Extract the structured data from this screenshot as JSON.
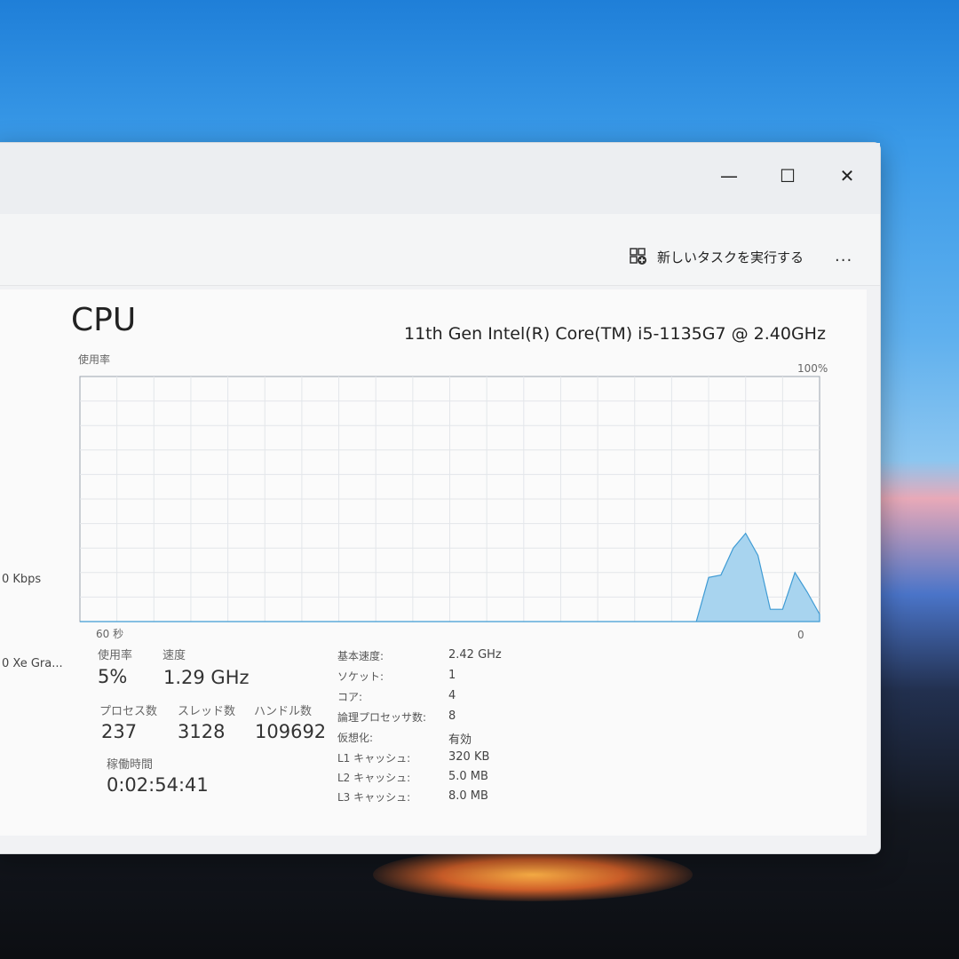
{
  "window": {
    "minimize": "—",
    "maximize": "☐",
    "close": "✕"
  },
  "commandbar": {
    "run_new_task": "新しいタスクを実行する",
    "more": "..."
  },
  "sidebar": {
    "items": [
      {
        "text": "0 Kbps"
      },
      {
        "text": "0 Xe Gra..."
      }
    ]
  },
  "cpu": {
    "title": "CPU",
    "model": "11th Gen Intel(R) Core(TM) i5-1135G7 @ 2.40GHz",
    "usage_label": "使用率",
    "max_label": "100%",
    "time_label": "60 秒",
    "zero_label": "0"
  },
  "chart_data": {
    "type": "area",
    "ylabel": "使用率",
    "ylim": [
      0,
      100
    ],
    "xlim": [
      60,
      0
    ],
    "grid": true,
    "fill_color": "#a8d4ef",
    "line_color": "#3f9bd4",
    "x": [
      60,
      59,
      58,
      57,
      56,
      55,
      54,
      53,
      52,
      51,
      50,
      49,
      48,
      47,
      46,
      45,
      44,
      43,
      42,
      41,
      40,
      39,
      38,
      37,
      36,
      35,
      34,
      33,
      32,
      31,
      30,
      29,
      28,
      27,
      26,
      25,
      24,
      23,
      22,
      21,
      20,
      19,
      18,
      17,
      16,
      15,
      14,
      13,
      12,
      11,
      10,
      9,
      8,
      7,
      6,
      5,
      4,
      3,
      2,
      1,
      0
    ],
    "values": [
      0,
      0,
      0,
      0,
      0,
      0,
      0,
      0,
      0,
      0,
      0,
      0,
      0,
      0,
      0,
      0,
      0,
      0,
      0,
      0,
      0,
      0,
      0,
      0,
      0,
      0,
      0,
      0,
      0,
      0,
      0,
      0,
      0,
      0,
      0,
      0,
      0,
      0,
      0,
      0,
      0,
      0,
      0,
      0,
      0,
      0,
      0,
      0,
      0,
      0,
      0,
      18,
      19,
      30,
      36,
      27,
      5,
      5,
      20,
      12,
      3
    ]
  },
  "stats": {
    "usage": {
      "label": "使用率",
      "value": "5%"
    },
    "speed": {
      "label": "速度",
      "value": "1.29 GHz"
    },
    "processes": {
      "label": "プロセス数",
      "value": "237"
    },
    "threads": {
      "label": "スレッド数",
      "value": "3128"
    },
    "handles": {
      "label": "ハンドル数",
      "value": "109692"
    },
    "uptime": {
      "label": "稼働時間",
      "value": "0:02:54:41"
    }
  },
  "details": [
    {
      "key": "基本速度:",
      "value": "2.42 GHz"
    },
    {
      "key": "ソケット:",
      "value": "1"
    },
    {
      "key": "コア:",
      "value": "4"
    },
    {
      "key": "論理プロセッサ数:",
      "value": "8"
    },
    {
      "key": "仮想化:",
      "value": "有効"
    },
    {
      "key": "L1 キャッシュ:",
      "value": "320 KB"
    },
    {
      "key": "L2 キャッシュ:",
      "value": "5.0 MB"
    },
    {
      "key": "L3 キャッシュ:",
      "value": "8.0 MB"
    }
  ]
}
